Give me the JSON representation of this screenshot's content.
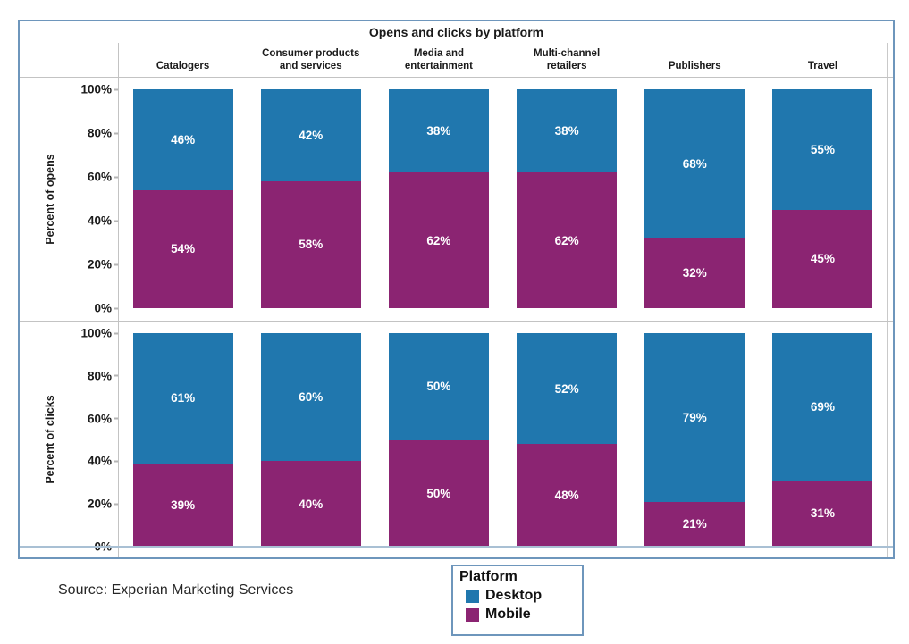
{
  "title": "Opens and clicks by platform",
  "source_note": "Source: Experian Marketing Services",
  "colors": {
    "desktop": "#2077AE",
    "mobile": "#8B2472",
    "frame_border": "#6E96BC",
    "gridline": "#C3C3C3",
    "baseline": "#A9C0D4",
    "value_label": "#FFFFFF"
  },
  "legend": {
    "title": "Platform",
    "entries": [
      {
        "label": "Desktop",
        "color": "#2077AE"
      },
      {
        "label": "Mobile",
        "color": "#8B2472"
      }
    ]
  },
  "chart_data": {
    "type": "bar",
    "stacked": true,
    "percent_scale": true,
    "title": "Opens and clicks by platform",
    "categories": [
      "Catalogers",
      "Consumer products and services",
      "Media and entertainment",
      "Multi-channel retailers",
      "Publishers",
      "Travel"
    ],
    "yticks": [
      "100%",
      "80%",
      "60%",
      "40%",
      "20%",
      "0%"
    ],
    "ylim": [
      0,
      100
    ],
    "legend_position": "bottom",
    "panels": [
      {
        "ylabel": "Percent of opens",
        "series": [
          {
            "name": "Desktop",
            "values": [
              46,
              42,
              38,
              38,
              68,
              55
            ]
          },
          {
            "name": "Mobile",
            "values": [
              54,
              58,
              62,
              62,
              32,
              45
            ]
          }
        ]
      },
      {
        "ylabel": "Percent of clicks",
        "series": [
          {
            "name": "Desktop",
            "values": [
              61,
              60,
              50,
              52,
              79,
              69
            ]
          },
          {
            "name": "Mobile",
            "values": [
              39,
              40,
              50,
              48,
              21,
              31
            ]
          }
        ]
      }
    ]
  }
}
